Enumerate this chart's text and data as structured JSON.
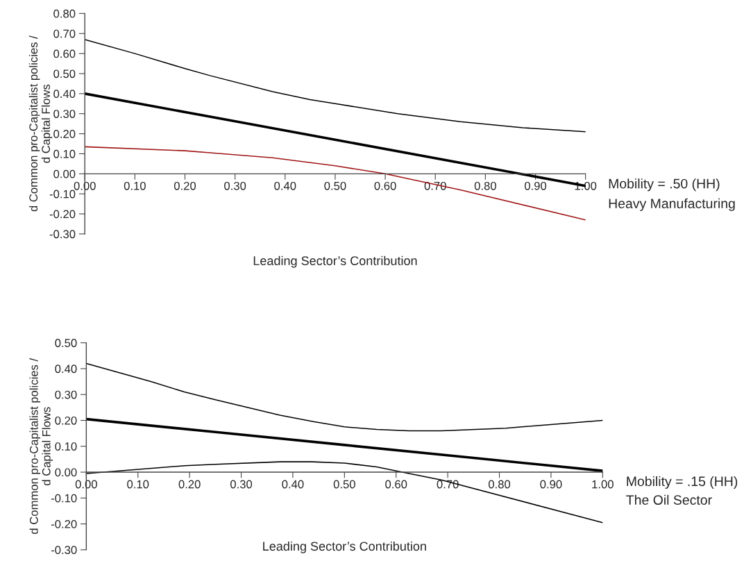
{
  "chart_data": [
    {
      "type": "line",
      "xlabel": "Leading Sector’s Contribution",
      "ylabel": "d Common pro-Capitalist policies /\nd Capital Flows",
      "annotations": [
        "Mobility = .50 (HH)",
        "Heavy Manufacturing"
      ],
      "xlim": [
        0,
        1
      ],
      "ylim": [
        -0.3,
        0.8
      ],
      "xticks": [
        {
          "value": 0,
          "label": "0.00"
        },
        {
          "value": 0.1,
          "label": "0.10"
        },
        {
          "value": 0.2,
          "label": "0.20"
        },
        {
          "value": 0.3,
          "label": "0.30"
        },
        {
          "value": 0.4,
          "label": "0.40"
        },
        {
          "value": 0.5,
          "label": "0.50"
        },
        {
          "value": 0.6,
          "label": "0.60"
        },
        {
          "value": 0.7,
          "label": "0.70"
        },
        {
          "value": 0.8,
          "label": "0.80"
        },
        {
          "value": 0.9,
          "label": "0.90"
        },
        {
          "value": 1,
          "label": "1.00"
        }
      ],
      "yticks": [
        {
          "value": -0.3,
          "label": "-0.30"
        },
        {
          "value": -0.2,
          "label": "-0.20"
        },
        {
          "value": -0.1,
          "label": "-0.10"
        },
        {
          "value": 0,
          "label": "0.00"
        },
        {
          "value": 0.1,
          "label": "0.10"
        },
        {
          "value": 0.2,
          "label": "0.20"
        },
        {
          "value": 0.3,
          "label": "0.30"
        },
        {
          "value": 0.4,
          "label": "0.40"
        },
        {
          "value": 0.5,
          "label": "0.50"
        },
        {
          "value": 0.6,
          "label": "0.60"
        },
        {
          "value": 0.7,
          "label": "0.70"
        },
        {
          "value": 0.8,
          "label": "0.80"
        }
      ],
      "grid": false,
      "marker": "none",
      "line_style": "solid",
      "series": [
        {
          "color": "#000000",
          "x": [
            0,
            0.1,
            0.2,
            0.25,
            0.375,
            0.45,
            0.5,
            0.625,
            0.75,
            0.875,
            1
          ],
          "values": [
            0.67,
            0.6,
            0.525,
            0.49,
            0.41,
            0.37,
            0.35,
            0.3,
            0.26,
            0.23,
            0.21
          ]
        },
        {
          "color": "#000000",
          "x": [
            0,
            0.25,
            0.5,
            0.75,
            1
          ],
          "values": [
            0.4,
            0.285,
            0.17,
            0.055,
            -0.06
          ]
        },
        {
          "color": "#a01515",
          "x": [
            0,
            0.2,
            0.25,
            0.375,
            0.5,
            0.6,
            0.75,
            1
          ],
          "values": [
            0.135,
            0.115,
            0.105,
            0.08,
            0.04,
            0.0,
            -0.08,
            -0.23
          ]
        }
      ]
    },
    {
      "type": "line",
      "xlabel": "Leading Sector’s Contribution",
      "ylabel": "d Common pro-Capitalist policies /\nd Capital Flows",
      "annotations": [
        "Mobility = .15 (HH)",
        "The Oil Sector"
      ],
      "xlim": [
        0,
        1
      ],
      "ylim": [
        -0.3,
        0.5
      ],
      "xticks": [
        {
          "value": 0,
          "label": "0.00"
        },
        {
          "value": 0.1,
          "label": "0.10"
        },
        {
          "value": 0.2,
          "label": "0.20"
        },
        {
          "value": 0.3,
          "label": "0.30"
        },
        {
          "value": 0.4,
          "label": "0.40"
        },
        {
          "value": 0.5,
          "label": "0.50"
        },
        {
          "value": 0.6,
          "label": "0.60"
        },
        {
          "value": 0.7,
          "label": "0.70"
        },
        {
          "value": 0.8,
          "label": "0.80"
        },
        {
          "value": 0.9,
          "label": "0.90"
        },
        {
          "value": 1,
          "label": "1.00"
        }
      ],
      "yticks": [
        {
          "value": -0.3,
          "label": "-0.30"
        },
        {
          "value": -0.2,
          "label": "-0.20"
        },
        {
          "value": -0.1,
          "label": "-0.10"
        },
        {
          "value": 0,
          "label": "0.00"
        },
        {
          "value": 0.1,
          "label": "0.10"
        },
        {
          "value": 0.2,
          "label": "0.20"
        },
        {
          "value": 0.3,
          "label": "0.30"
        },
        {
          "value": 0.4,
          "label": "0.40"
        },
        {
          "value": 0.5,
          "label": "0.50"
        }
      ],
      "grid": false,
      "marker": "none",
      "line_style": "solid",
      "series": [
        {
          "color": "#000000",
          "x": [
            0,
            0.125,
            0.19,
            0.25,
            0.375,
            0.44,
            0.5,
            0.5625,
            0.625,
            0.6875,
            0.8125,
            1
          ],
          "values": [
            0.42,
            0.35,
            0.31,
            0.28,
            0.22,
            0.195,
            0.175,
            0.165,
            0.16,
            0.16,
            0.17,
            0.2
          ]
        },
        {
          "color": "#000000",
          "x": [
            0,
            0.25,
            0.5,
            0.75,
            1
          ],
          "values": [
            0.205,
            0.155,
            0.105,
            0.055,
            0.005
          ]
        },
        {
          "color": "#000000",
          "x": [
            0,
            0.19,
            0.25,
            0.375,
            0.4375,
            0.5,
            0.5625,
            0.625,
            0.6875,
            1
          ],
          "values": [
            -0.005,
            0.025,
            0.03,
            0.04,
            0.04,
            0.035,
            0.02,
            -0.005,
            -0.03,
            -0.195
          ]
        }
      ]
    }
  ]
}
